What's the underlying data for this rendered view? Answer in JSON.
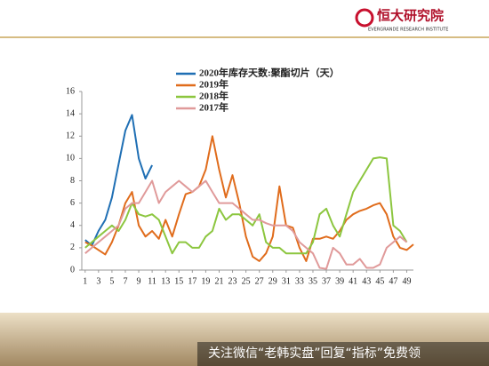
{
  "header": {
    "logo": "恒大研究院",
    "logo_sub": "EVERGRANDE RESEARCH INSTITUTE"
  },
  "footer": {
    "text": "关注微信“老韩实盘”回复“指标”免费领"
  },
  "chart_data": {
    "type": "line",
    "x": [
      1,
      2,
      3,
      4,
      5,
      6,
      7,
      8,
      9,
      10,
      11,
      12,
      13,
      14,
      15,
      16,
      17,
      18,
      19,
      20,
      21,
      22,
      23,
      24,
      25,
      26,
      27,
      28,
      29,
      30,
      31,
      32,
      33,
      34,
      35,
      36,
      37,
      38,
      39,
      40,
      41,
      42,
      43,
      44,
      45,
      46,
      47,
      48,
      49,
      50
    ],
    "xlim": [
      0.5,
      50
    ],
    "xticks": [
      1,
      3,
      5,
      7,
      9,
      11,
      13,
      15,
      17,
      19,
      21,
      23,
      25,
      27,
      29,
      31,
      33,
      35,
      37,
      39,
      41,
      43,
      45,
      47,
      49
    ],
    "ylim": [
      0,
      16
    ],
    "yticks": [
      0,
      2,
      4,
      6,
      8,
      10,
      12,
      14,
      16
    ],
    "legend": "top",
    "series": [
      {
        "name": "2020年库存天数:聚酯切片（天）",
        "color": "#1f6fb4",
        "values": [
          2.7,
          2.2,
          3.5,
          4.5,
          6.5,
          9.5,
          12.5,
          13.9,
          10,
          8.2,
          9.4,
          null,
          null,
          null,
          null,
          null,
          null,
          null,
          null,
          null,
          null,
          null,
          null,
          null,
          null,
          null,
          null,
          null,
          null,
          null,
          null,
          null,
          null,
          null,
          null,
          null,
          null,
          null,
          null,
          null,
          null,
          null,
          null,
          null,
          null,
          null,
          null,
          null,
          null,
          null
        ]
      },
      {
        "name": "2019年",
        "color": "#e06c1c",
        "values": [
          2.5,
          2.2,
          1.8,
          1.4,
          2.5,
          4,
          6,
          7,
          4,
          3,
          3.5,
          2.8,
          4.5,
          3,
          5,
          6.8,
          7,
          7.5,
          9,
          12,
          9,
          6.5,
          8.5,
          6,
          3,
          1.2,
          0.8,
          1.5,
          3,
          7.5,
          4,
          3.8,
          2,
          0.8,
          2.8,
          2.8,
          3,
          2.8,
          3.5,
          4.5,
          5,
          5.3,
          5.5,
          5.8,
          6,
          5,
          3,
          2,
          1.8,
          2.3
        ]
      },
      {
        "name": "2018年",
        "color": "#8cc63f",
        "values": [
          2,
          2.5,
          3,
          3.5,
          4,
          3.5,
          4.5,
          6,
          5,
          4.8,
          5,
          4.5,
          3,
          1.5,
          2.5,
          2.5,
          2,
          2,
          3,
          3.5,
          5.5,
          4.5,
          5,
          5,
          4.5,
          4,
          5,
          2.5,
          2,
          2,
          1.5,
          1.5,
          1.5,
          1.5,
          2.5,
          5,
          5.5,
          4,
          3,
          5,
          7,
          8,
          9,
          10,
          10.1,
          10,
          4,
          3.5,
          2.5,
          null
        ]
      },
      {
        "name": "2017年",
        "color": "#e09a9a",
        "values": [
          1.5,
          2,
          2.5,
          3,
          3.5,
          4,
          5.5,
          6,
          6,
          7,
          8,
          6,
          7,
          7.5,
          8,
          7.5,
          7,
          7.5,
          8,
          7,
          6,
          6,
          6,
          5.5,
          5,
          4.5,
          4.5,
          4.2,
          4,
          4,
          4,
          3.5,
          2.5,
          2,
          1.5,
          0.2,
          0.1,
          2,
          1.5,
          0.5,
          0.5,
          1,
          0.2,
          0.2,
          0.5,
          2,
          2.5,
          3,
          2.5,
          null
        ]
      }
    ]
  }
}
